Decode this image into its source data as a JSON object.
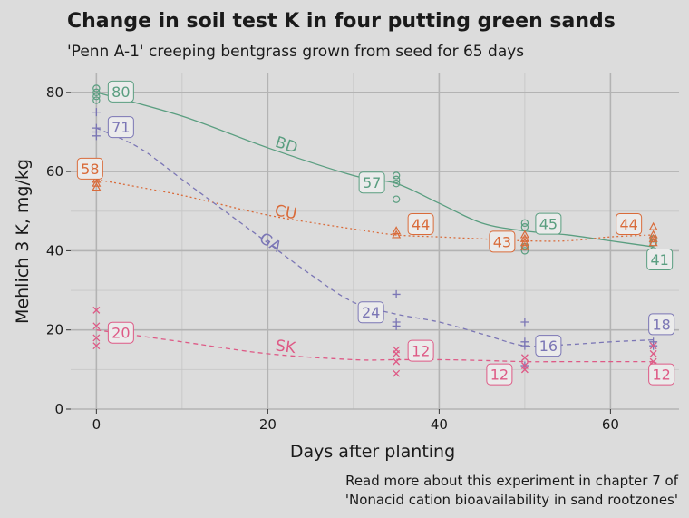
{
  "chart_data": {
    "type": "scatter",
    "title": "Change in soil test K in four putting green sands",
    "subtitle": "'Penn A-1' creeping bentgrass grown from seed for 65 days",
    "xlabel": "Days after planting",
    "ylabel": "Mehlich 3 K, mg/kg",
    "xlim": [
      -3,
      68
    ],
    "ylim": [
      0,
      85
    ],
    "x_ticks": [
      0,
      20,
      40,
      60
    ],
    "y_ticks": [
      0,
      20,
      40,
      60,
      80
    ],
    "grid": true,
    "caption": [
      "Read more about this experiment in chapter 7 of",
      "'Nonacid cation bioavailability in sand rootzones'"
    ],
    "series": [
      {
        "name": "BD",
        "color": "#5a9e80",
        "marker": "circle",
        "line_style": "solid",
        "points": [
          [
            0,
            81
          ],
          [
            0,
            80
          ],
          [
            0,
            79
          ],
          [
            0,
            78
          ],
          [
            35,
            59
          ],
          [
            35,
            58
          ],
          [
            35,
            57
          ],
          [
            35,
            53
          ],
          [
            50,
            47
          ],
          [
            50,
            46
          ],
          [
            50,
            41
          ],
          [
            50,
            40
          ],
          [
            65,
            43
          ],
          [
            65,
            42
          ],
          [
            65,
            40
          ]
        ],
        "curve": [
          [
            0,
            80
          ],
          [
            10,
            74
          ],
          [
            20,
            66
          ],
          [
            30,
            59
          ],
          [
            35,
            57
          ],
          [
            40,
            52
          ],
          [
            45,
            47
          ],
          [
            50,
            45
          ],
          [
            55,
            44
          ],
          [
            60,
            42.5
          ],
          [
            65,
            41
          ]
        ],
        "mean_labels": [
          [
            "80",
            0,
            80
          ],
          [
            "57",
            35,
            57
          ],
          [
            "45",
            50,
            45
          ],
          [
            "41",
            65,
            41
          ]
        ]
      },
      {
        "name": "CU",
        "color": "#d96b3a",
        "marker": "triangle",
        "line_style": "dotted",
        "points": [
          [
            0,
            59
          ],
          [
            0,
            58
          ],
          [
            0,
            57
          ],
          [
            0,
            56
          ],
          [
            35,
            45
          ],
          [
            35,
            44
          ],
          [
            50,
            44
          ],
          [
            50,
            43
          ],
          [
            50,
            42
          ],
          [
            50,
            41
          ],
          [
            65,
            46
          ],
          [
            65,
            44
          ],
          [
            65,
            43
          ],
          [
            65,
            42
          ]
        ],
        "curve": [
          [
            0,
            58
          ],
          [
            10,
            54
          ],
          [
            20,
            49
          ],
          [
            30,
            45.5
          ],
          [
            35,
            44
          ],
          [
            40,
            43.5
          ],
          [
            45,
            43
          ],
          [
            50,
            42.5
          ],
          [
            55,
            42.5
          ],
          [
            60,
            43.5
          ],
          [
            65,
            44
          ]
        ],
        "mean_labels": [
          [
            "58",
            0,
            58
          ],
          [
            "44",
            35,
            44
          ],
          [
            "43",
            50,
            43
          ],
          [
            "44",
            65,
            44
          ]
        ]
      },
      {
        "name": "GA",
        "color": "#7b76b5",
        "marker": "plus",
        "line_style": "dashed",
        "points": [
          [
            0,
            75
          ],
          [
            0,
            71
          ],
          [
            0,
            70
          ],
          [
            0,
            69
          ],
          [
            35,
            29
          ],
          [
            35,
            22
          ],
          [
            35,
            21
          ],
          [
            50,
            22
          ],
          [
            50,
            17
          ],
          [
            50,
            16
          ],
          [
            50,
            11
          ],
          [
            65,
            17
          ],
          [
            65,
            16
          ]
        ],
        "curve": [
          [
            0,
            71
          ],
          [
            5,
            66
          ],
          [
            10,
            58
          ],
          [
            15,
            50
          ],
          [
            20,
            42
          ],
          [
            25,
            34
          ],
          [
            30,
            27
          ],
          [
            35,
            24
          ],
          [
            40,
            22
          ],
          [
            45,
            19
          ],
          [
            50,
            16
          ],
          [
            55,
            16.3
          ],
          [
            60,
            17
          ],
          [
            65,
            17.5
          ]
        ],
        "mean_labels": [
          [
            "71",
            0,
            71
          ],
          [
            "24",
            35,
            24
          ],
          [
            "16",
            50,
            16
          ],
          [
            "18",
            65,
            18
          ]
        ]
      },
      {
        "name": "SK",
        "color": "#de5a86",
        "marker": "cross",
        "line_style": "dashed",
        "points": [
          [
            0,
            25
          ],
          [
            0,
            21
          ],
          [
            0,
            18
          ],
          [
            0,
            16
          ],
          [
            35,
            15
          ],
          [
            35,
            14
          ],
          [
            35,
            12
          ],
          [
            35,
            9
          ],
          [
            50,
            13
          ],
          [
            50,
            11
          ],
          [
            50,
            10
          ],
          [
            65,
            16
          ],
          [
            65,
            14
          ],
          [
            65,
            12
          ],
          [
            65,
            11
          ]
        ],
        "curve": [
          [
            0,
            20
          ],
          [
            10,
            17
          ],
          [
            20,
            14
          ],
          [
            30,
            12.5
          ],
          [
            35,
            12.5
          ],
          [
            40,
            12.5
          ],
          [
            45,
            12.3
          ],
          [
            50,
            12
          ],
          [
            55,
            12
          ],
          [
            60,
            12
          ],
          [
            65,
            12
          ]
        ],
        "mean_labels": [
          [
            "20",
            0,
            20
          ],
          [
            "12",
            35,
            12
          ],
          [
            "12",
            50,
            12
          ],
          [
            "12",
            65,
            12
          ]
        ]
      }
    ]
  }
}
